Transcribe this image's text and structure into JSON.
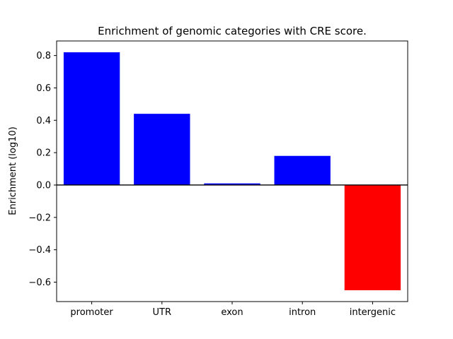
{
  "chart_data": {
    "type": "bar",
    "title": "Enrichment of genomic categories with CRE score.",
    "xlabel": "",
    "ylabel": "Enrichment (log10)",
    "categories": [
      "promoter",
      "UTR",
      "exon",
      "intron",
      "intergenic"
    ],
    "values": [
      0.82,
      0.44,
      0.01,
      0.18,
      -0.65
    ],
    "colors": [
      "#0000ff",
      "#0000ff",
      "#0000ff",
      "#0000ff",
      "#ff0000"
    ],
    "ylim": [
      -0.72,
      0.89
    ],
    "yticks": [
      -0.6,
      -0.4,
      -0.2,
      0.0,
      0.2,
      0.4,
      0.6,
      0.8
    ],
    "zero_line": true,
    "grid": false,
    "legend": "none",
    "bar_width_fraction": 0.8
  },
  "figure": {
    "background_color": "#ffffff",
    "axis_color": "#000000"
  }
}
